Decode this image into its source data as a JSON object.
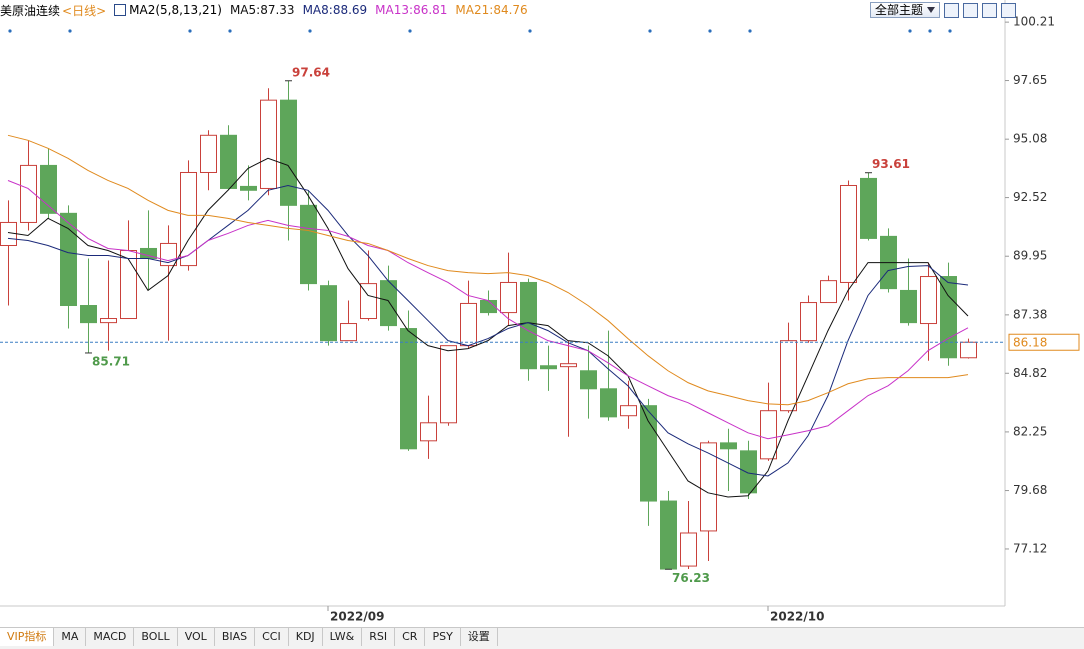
{
  "chart_data": {
    "type": "candlestick",
    "title": "美原油连续",
    "period": "<日线>",
    "indicator_label": "MA2(5,8,13,21)",
    "separator": ":",
    "theme_button": "全部主题",
    "categories": [
      null,
      null,
      null,
      null,
      null,
      null,
      null,
      null,
      null,
      null,
      null,
      null,
      null,
      null,
      null,
      null,
      "2022/09",
      null,
      null,
      null,
      null,
      null,
      null,
      null,
      null,
      null,
      null,
      null,
      null,
      null,
      null,
      null,
      null,
      null,
      null,
      null,
      null,
      null,
      "2022/10",
      null,
      null,
      null,
      null,
      null,
      null,
      null,
      null,
      null,
      null
    ],
    "open": [
      90.42,
      91.43,
      93.93,
      91.83,
      87.79,
      87.04,
      87.22,
      90.29,
      89.54,
      89.54,
      93.62,
      95.25,
      93.01,
      92.92,
      96.79,
      92.18,
      88.66,
      86.25,
      87.22,
      88.88,
      86.78,
      81.86,
      82.65,
      86.03,
      88.01,
      87.48,
      88.8,
      85.15,
      85.11,
      84.93,
      84.14,
      82.96,
      83.4,
      79.22,
      76.37,
      77.91,
      81.77,
      81.42,
      81.07,
      83.18,
      86.25,
      87.92,
      88.8,
      93.36,
      90.82,
      88.45,
      87.0,
      89.06,
      85.5
    ],
    "high": [
      92.4,
      95.03,
      94.68,
      92.18,
      89.85,
      89.76,
      91.52,
      91.96,
      91.3,
      94.15,
      95.47,
      95.69,
      93.93,
      97.31,
      97.64,
      92.84,
      88.88,
      88.01,
      90.2,
      89.54,
      87.57,
      83.84,
      86.03,
      88.88,
      88.45,
      90.11,
      88.97,
      86.03,
      86.25,
      86.03,
      86.69,
      84.49,
      83.7,
      79.66,
      79.22,
      81.86,
      82.39,
      81.86,
      84.41,
      87.04,
      88.23,
      89.1,
      93.27,
      93.61,
      91.17,
      89.85,
      89.67,
      89.67,
      86.34
    ],
    "low": [
      87.79,
      91.08,
      91.61,
      86.78,
      85.71,
      85.81,
      87.22,
      88.45,
      86.25,
      89.32,
      92.84,
      92.84,
      92.4,
      92.62,
      90.64,
      88.45,
      86.03,
      86.25,
      87.13,
      86.69,
      81.42,
      81.07,
      82.52,
      85.9,
      87.35,
      86.91,
      84.49,
      84.05,
      82.04,
      82.83,
      82.74,
      82.39,
      78.13,
      76.23,
      76.24,
      76.59,
      79.66,
      79.31,
      80.98,
      83.09,
      86.16,
      87.92,
      88.01,
      90.64,
      88.36,
      86.91,
      85.37,
      85.15,
      85.46
    ],
    "close": [
      91.43,
      93.93,
      91.83,
      87.79,
      87.04,
      87.22,
      90.2,
      89.85,
      90.51,
      93.62,
      95.25,
      92.92,
      92.84,
      96.79,
      92.18,
      88.75,
      86.25,
      87.0,
      88.75,
      86.91,
      81.51,
      82.65,
      86.03,
      87.88,
      87.48,
      88.8,
      85.02,
      85.02,
      85.24,
      84.14,
      82.91,
      83.4,
      79.22,
      76.24,
      77.82,
      81.77,
      81.51,
      79.58,
      83.18,
      86.25,
      87.92,
      88.88,
      93.05,
      90.73,
      88.53,
      87.04,
      89.06,
      85.5,
      86.18
    ],
    "up_color": "#c9413b",
    "down_color": "#5ea65a",
    "high_label_color": "#c9413b",
    "low_label_color": "#4f9a4b",
    "price_line_color": "#3a7fc4",
    "price_label_color": "#e08a1e",
    "series": [
      {
        "name": "MA5",
        "color": "#111111",
        "values": [
          90.99,
          90.86,
          91.61,
          91.17,
          90.42,
          90.2,
          89.85,
          88.45,
          89.1,
          90.64,
          91.96,
          92.84,
          93.8,
          94.24,
          93.93,
          92.62,
          91.17,
          89.41,
          88.23,
          88.01,
          86.69,
          86.03,
          85.81,
          85.9,
          86.25,
          86.91,
          87.04,
          86.91,
          86.25,
          86.16,
          85.59,
          84.71,
          82.74,
          81.42,
          80.1,
          79.58,
          79.4,
          79.45,
          80.54,
          82.74,
          84.71,
          86.69,
          88.45,
          89.67,
          89.67,
          89.67,
          89.67,
          88.23,
          87.33
        ]
      },
      {
        "name": "MA8",
        "color": "#1b2a7a",
        "values": [
          90.73,
          90.64,
          90.42,
          90.11,
          89.98,
          89.98,
          89.85,
          89.85,
          89.67,
          89.98,
          90.64,
          91.3,
          91.96,
          92.84,
          93.05,
          92.84,
          91.96,
          90.86,
          89.98,
          88.88,
          88.01,
          87.13,
          86.25,
          86.03,
          86.34,
          86.78,
          87.04,
          86.69,
          86.16,
          85.81,
          85.02,
          84.27,
          83.18,
          82.21,
          81.73,
          81.33,
          80.89,
          80.45,
          80.32,
          80.89,
          82.08,
          83.84,
          86.25,
          88.23,
          89.32,
          89.5,
          89.54,
          88.8,
          88.69
        ]
      },
      {
        "name": "MA13",
        "color": "#c832c8",
        "values": [
          93.27,
          92.92,
          92.18,
          91.43,
          90.73,
          90.29,
          90.2,
          89.98,
          89.76,
          89.98,
          90.64,
          90.95,
          91.3,
          91.52,
          91.3,
          91.17,
          91.08,
          90.82,
          90.42,
          90.2,
          89.67,
          89.23,
          88.8,
          88.23,
          88.01,
          87.22,
          86.69,
          86.25,
          86.03,
          85.81,
          85.28,
          84.71,
          84.27,
          83.84,
          83.53,
          83.09,
          82.65,
          82.21,
          81.95,
          82.12,
          82.3,
          82.52,
          83.18,
          83.84,
          84.27,
          84.93,
          85.81,
          86.34,
          86.81
        ]
      },
      {
        "name": "MA21",
        "color": "#e08a1e",
        "values": [
          95.25,
          95.03,
          94.68,
          94.24,
          93.71,
          93.27,
          92.92,
          92.4,
          91.96,
          91.74,
          91.74,
          91.61,
          91.43,
          91.3,
          91.17,
          91.08,
          90.86,
          90.64,
          90.51,
          90.2,
          89.85,
          89.54,
          89.32,
          89.23,
          89.19,
          89.23,
          89.1,
          88.8,
          88.36,
          87.79,
          87.13,
          86.34,
          85.59,
          84.93,
          84.41,
          84.05,
          83.84,
          83.62,
          83.48,
          83.44,
          83.62,
          83.97,
          84.36,
          84.58,
          84.63,
          84.63,
          84.63,
          84.63,
          84.76
        ]
      }
    ],
    "ylim": [
      74.62,
      101.18
    ],
    "yticks": [
      100.21,
      97.65,
      95.08,
      92.52,
      89.95,
      87.38,
      84.82,
      82.25,
      79.68,
      77.12
    ],
    "grid": false
  },
  "toolbar": {
    "tabs": [
      "VIP指标",
      "MA",
      "MACD",
      "BOLL",
      "VOL",
      "BIAS",
      "CCI",
      "KDJ",
      "LW&",
      "RSI",
      "CR",
      "PSY",
      "设置"
    ]
  }
}
